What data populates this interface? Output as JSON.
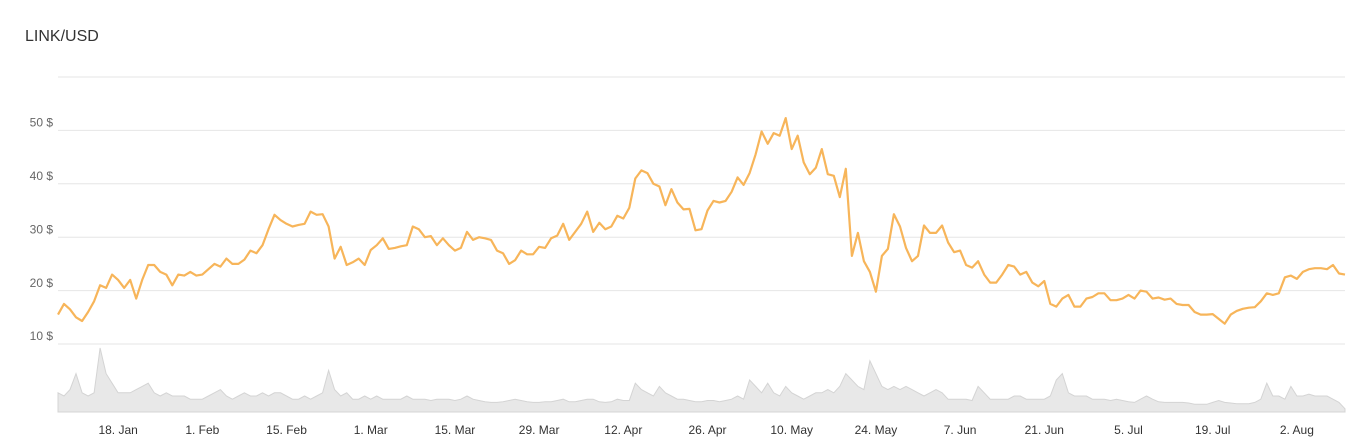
{
  "chart_data": {
    "type": "line",
    "title": "LINK/USD",
    "categories": [
      null,
      null,
      null,
      null,
      null,
      null,
      null,
      null,
      null,
      null,
      "18. Jan",
      null,
      null,
      null,
      null,
      null,
      null,
      null,
      null,
      null,
      null,
      null,
      null,
      null,
      "1. Feb",
      null,
      null,
      null,
      null,
      null,
      null,
      null,
      null,
      null,
      null,
      null,
      null,
      null,
      "15. Feb",
      null,
      null,
      null,
      null,
      null,
      null,
      null,
      null,
      null,
      null,
      null,
      null,
      null,
      "1. Mar",
      null,
      null,
      null,
      null,
      null,
      null,
      null,
      null,
      null,
      null,
      null,
      null,
      null,
      "15. Mar",
      null,
      null,
      null,
      null,
      null,
      null,
      null,
      null,
      null,
      null,
      null,
      null,
      null,
      "29. Mar",
      null,
      null,
      null,
      null,
      null,
      null,
      null,
      null,
      null,
      null,
      null,
      null,
      null,
      "12. Apr",
      null,
      null,
      null,
      null,
      null,
      null,
      null,
      null,
      null,
      null,
      null,
      null,
      null,
      "26. Apr",
      null,
      null,
      null,
      null,
      null,
      null,
      null,
      null,
      null,
      null,
      null,
      null,
      null,
      "10. May",
      null,
      null,
      null,
      null,
      null,
      null,
      null,
      null,
      null,
      null,
      null,
      null,
      null,
      "24. May",
      null,
      null,
      null,
      null,
      null,
      null,
      null,
      null,
      null,
      null,
      null,
      null,
      null,
      "7. Jun",
      null,
      null,
      null,
      null,
      null,
      null,
      null,
      null,
      null,
      null,
      null,
      null,
      null,
      "21. Jun",
      null,
      null,
      null,
      null,
      null,
      null,
      null,
      null,
      null,
      null,
      null,
      null,
      null,
      "5. Jul",
      null,
      null,
      null,
      null,
      null,
      null,
      null,
      null,
      null,
      null,
      null,
      null,
      null,
      "19. Jul",
      null,
      null,
      null,
      null,
      null,
      null,
      null,
      null,
      null,
      null,
      null,
      null,
      null,
      "2. Aug",
      null,
      null,
      null,
      null,
      null,
      null,
      null,
      null
    ],
    "values": [
      15.5,
      17.5,
      16.5,
      15,
      14.3,
      16,
      18,
      21,
      20.5,
      23,
      22,
      20.5,
      22,
      18.5,
      22,
      24.8,
      24.8,
      23.5,
      23,
      21,
      23,
      22.8,
      23.5,
      22.8,
      23,
      24,
      25,
      24.5,
      26,
      25,
      25,
      25.8,
      27.5,
      27,
      28.5,
      31.5,
      34.2,
      33.2,
      32.5,
      32,
      32.3,
      32.5,
      34.8,
      34.2,
      34.3,
      32,
      26,
      28.2,
      24.8,
      25.3,
      26,
      24.8,
      27.6,
      28.5,
      29.8,
      27.8,
      28,
      28.3,
      28.5,
      32,
      31.5,
      30,
      30.2,
      28.5,
      29.8,
      28.5,
      27.5,
      28,
      31,
      29.5,
      30,
      29.8,
      29.5,
      27.5,
      27,
      25,
      25.7,
      27.5,
      26.8,
      26.8,
      28.2,
      28,
      29.8,
      30.3,
      32.5,
      29.5,
      31,
      32.5,
      34.8,
      31,
      32.7,
      31.5,
      32,
      34,
      33.5,
      35.5,
      41,
      42.5,
      42,
      40,
      39.5,
      36,
      39,
      36.5,
      35.2,
      35.3,
      31.3,
      31.5,
      35,
      36.8,
      36.5,
      36.8,
      38.5,
      41.2,
      39.8,
      42,
      45.5,
      49.8,
      47.5,
      49.5,
      49,
      52.3,
      46.5,
      49,
      44,
      41.8,
      43,
      46.5,
      41.8,
      41.5,
      37.5,
      42.8,
      26.5,
      30.8,
      25.5,
      23.5,
      19.8,
      26.5,
      27.8,
      34.3,
      32,
      28,
      25.5,
      26.5,
      32.2,
      30.8,
      30.8,
      32.2,
      29,
      27.2,
      27.5,
      24.8,
      24.3,
      25.5,
      23,
      21.5,
      21.5,
      23,
      24.8,
      24.5,
      23,
      23.5,
      21.5,
      20.8,
      21.8,
      17.5,
      17,
      18.5,
      19.2,
      17,
      17,
      18.5,
      18.8,
      19.5,
      19.5,
      18.2,
      18.2,
      18.5,
      19.2,
      18.5,
      20,
      19.8,
      18.5,
      18.7,
      18.3,
      18.5,
      17.5,
      17.3,
      17.3,
      16,
      15.5,
      15.5,
      15.6,
      14.7,
      13.8,
      15.5,
      16.2,
      16.6,
      16.8,
      16.9,
      18,
      19.5,
      19.2,
      19.5,
      22.5,
      22.8,
      22.2,
      23.5,
      24,
      24.2,
      24.2,
      24,
      24.8,
      23.2,
      23
    ],
    "color": "#f7b55a",
    "volume": {
      "color": "#e8e8e8",
      "values": [
        3,
        2.5,
        3.5,
        6,
        3,
        2.5,
        3,
        10,
        6,
        4.5,
        3,
        3,
        3,
        3.5,
        4,
        4.5,
        3,
        2.5,
        3,
        2.5,
        2.5,
        2.5,
        2,
        2,
        2,
        2.5,
        3,
        3.5,
        2.5,
        2,
        2.5,
        3,
        2.5,
        2.5,
        3,
        2.5,
        3,
        3,
        2.5,
        2,
        2,
        2.5,
        2,
        2.5,
        3,
        6.5,
        3.5,
        2.5,
        3,
        2,
        2,
        2.5,
        2,
        2.5,
        2,
        2,
        2,
        2,
        2.5,
        2,
        2,
        2,
        1.8,
        2,
        2,
        2,
        1.8,
        2,
        2.5,
        2,
        1.8,
        1.6,
        1.5,
        1.5,
        1.6,
        1.8,
        2,
        1.8,
        1.6,
        1.5,
        1.5,
        1.6,
        1.6,
        1.8,
        2,
        1.6,
        1.6,
        1.8,
        2,
        2,
        1.6,
        1.5,
        1.6,
        2,
        1.8,
        1.8,
        4.5,
        3.5,
        3,
        2.5,
        4,
        3,
        2.5,
        2,
        2,
        1.8,
        1.6,
        1.6,
        1.8,
        1.8,
        1.6,
        1.8,
        2,
        2.5,
        2,
        5,
        4,
        3,
        4.5,
        3,
        2.5,
        4,
        3,
        2.5,
        2,
        2.5,
        3,
        3,
        3.5,
        3,
        4,
        6,
        5,
        4,
        3.5,
        8,
        6,
        4,
        3.5,
        4,
        3.5,
        4,
        3.5,
        3,
        2.5,
        3,
        3.5,
        3,
        2,
        2,
        2,
        2,
        1.8,
        4,
        3,
        2,
        2,
        2,
        2,
        2.5,
        2.5,
        2,
        2,
        2,
        2,
        2.5,
        5,
        6,
        3,
        2.5,
        2.5,
        2.5,
        2,
        2,
        2,
        1.8,
        2,
        1.8,
        1.6,
        1.5,
        2,
        2.5,
        2,
        1.6,
        1.5,
        1.5,
        1.5,
        1.5,
        1.4,
        1.2,
        1.2,
        1.2,
        1.5,
        1.8,
        1.5,
        1.4,
        1.3,
        1.3,
        1.3,
        1.5,
        2,
        4.5,
        2.5,
        2.5,
        2,
        4,
        2.5,
        2.5,
        2.8,
        2.5,
        2.5,
        2.5,
        2,
        1.5,
        0.5
      ]
    },
    "ylim": [
      10,
      60
    ],
    "yticks": [
      {
        "value": 10,
        "label": "10 $"
      },
      {
        "value": 20,
        "label": "20 $"
      },
      {
        "value": 30,
        "label": "30 $"
      },
      {
        "value": 40,
        "label": "40 $"
      },
      {
        "value": 50,
        "label": "50 $"
      }
    ],
    "grid": true
  }
}
